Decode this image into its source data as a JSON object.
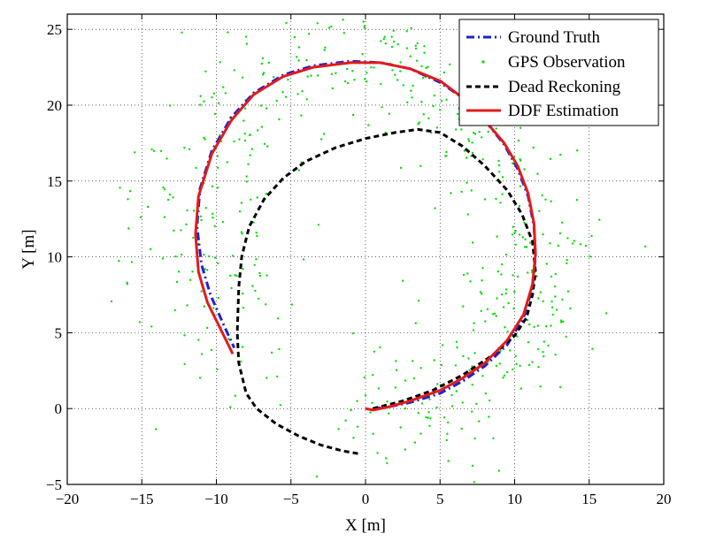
{
  "chart_data": {
    "type": "line",
    "title": "",
    "xlabel": "X [m]",
    "ylabel": "Y [m]",
    "xlim": [
      -20,
      20
    ],
    "ylim": [
      -5,
      26
    ],
    "xticks": [
      -20,
      -15,
      -10,
      -5,
      0,
      5,
      10,
      15,
      20
    ],
    "yticks": [
      -5,
      0,
      5,
      10,
      15,
      20,
      25
    ],
    "xtick_labels": [
      "−20",
      "−15",
      "−10",
      "−5",
      "0",
      "5",
      "10",
      "15",
      "20"
    ],
    "ytick_labels": [
      "−5",
      "0",
      "5",
      "10",
      "15",
      "20",
      "25"
    ],
    "grid": true,
    "legend_position": "top-right",
    "series": [
      {
        "name": "Ground Truth",
        "style": "dash-dot",
        "color": "#1f1fd6",
        "x": [
          0.5,
          1.5,
          3.0,
          5.0,
          6.5,
          8.0,
          9.5,
          10.6,
          11.2,
          11.4,
          11.3,
          10.9,
          10.2,
          9.3,
          8.0,
          6.5,
          5.0,
          3.0,
          1.0,
          -1.0,
          -3.5,
          -5.5,
          -7.5,
          -9.0,
          -10.3,
          -11.1,
          -11.3,
          -11.0,
          -10.4,
          -9.5,
          -8.8
        ],
        "y": [
          0.0,
          0.1,
          0.4,
          1.0,
          1.8,
          2.8,
          4.2,
          6.0,
          8.0,
          10.0,
          12.0,
          14.0,
          15.8,
          17.4,
          19.0,
          20.5,
          21.5,
          22.4,
          22.8,
          22.9,
          22.6,
          22.0,
          20.8,
          19.2,
          17.0,
          14.5,
          12.0,
          9.5,
          7.5,
          5.5,
          4.0
        ]
      },
      {
        "name": "GPS Observation",
        "style": "points",
        "color": "#00dd00"
      },
      {
        "name": "Dead Reckoning",
        "style": "dashed",
        "color": "#000000",
        "x": [
          0.5,
          2.5,
          4.5,
          6.5,
          8.5,
          10.0,
          10.8,
          11.2,
          11.4,
          11.2,
          10.5,
          9.5,
          8.0,
          6.5,
          5.0,
          3.5,
          2.0,
          0.0,
          -2.0,
          -4.0,
          -5.5,
          -6.8,
          -7.8,
          -8.3,
          -8.5,
          -8.6,
          -8.5,
          -8.0,
          -7.3,
          -6.0,
          -4.5,
          -3.0,
          -1.5,
          -0.3
        ],
        "y": [
          0.0,
          0.5,
          1.2,
          2.2,
          3.5,
          4.8,
          6.0,
          7.5,
          9.0,
          11.0,
          12.8,
          14.4,
          16.0,
          17.3,
          18.2,
          18.4,
          18.2,
          17.8,
          17.2,
          16.3,
          15.2,
          13.8,
          12.0,
          10.0,
          8.0,
          5.0,
          3.0,
          1.0,
          0.0,
          -1.0,
          -1.8,
          -2.4,
          -2.8,
          -3.0
        ],
        "end_point": [
          -0.3,
          -3.0
        ]
      },
      {
        "name": "DDF Estimation",
        "style": "solid",
        "color": "#e21b1b",
        "x": [
          0.0,
          0.5,
          1.5,
          3.0,
          5.0,
          6.5,
          8.0,
          9.5,
          10.6,
          11.2,
          11.4,
          11.3,
          10.9,
          10.2,
          9.3,
          8.0,
          6.5,
          5.0,
          3.0,
          1.0,
          -1.0,
          -3.5,
          -5.5,
          -7.5,
          -9.0,
          -10.3,
          -11.2,
          -11.4,
          -11.2,
          -10.6,
          -9.7,
          -8.9
        ],
        "y": [
          0.0,
          -0.1,
          0.1,
          0.5,
          1.2,
          2.0,
          3.0,
          4.5,
          6.2,
          8.2,
          10.2,
          12.2,
          14.2,
          16.0,
          17.5,
          19.0,
          20.5,
          21.6,
          22.4,
          22.8,
          22.8,
          22.5,
          21.9,
          20.7,
          19.0,
          16.8,
          14.0,
          11.5,
          9.0,
          7.0,
          5.2,
          3.6
        ]
      }
    ],
    "gps_scatter": {
      "center_x": [
        0.5,
        1.5,
        3.0,
        5.0,
        6.5,
        8.0,
        9.5,
        10.6,
        11.2,
        11.4,
        11.3,
        10.9,
        10.2,
        9.3,
        8.0,
        6.5,
        5.0,
        3.0,
        1.0,
        -1.0,
        -3.5,
        -5.5,
        -7.5,
        -9.0,
        -10.3,
        -11.1,
        -11.3,
        -11.0,
        -10.4,
        -9.5,
        -8.8
      ],
      "center_y": [
        0.0,
        0.1,
        0.4,
        1.0,
        1.8,
        2.8,
        4.2,
        6.0,
        8.0,
        10.0,
        12.0,
        14.0,
        15.8,
        17.4,
        19.0,
        20.5,
        21.5,
        22.4,
        22.8,
        22.9,
        22.6,
        22.0,
        20.8,
        19.2,
        17.0,
        14.5,
        12.0,
        9.5,
        7.5,
        5.5,
        4.0
      ],
      "approx_count": 600,
      "spread_m": 3.0
    }
  }
}
